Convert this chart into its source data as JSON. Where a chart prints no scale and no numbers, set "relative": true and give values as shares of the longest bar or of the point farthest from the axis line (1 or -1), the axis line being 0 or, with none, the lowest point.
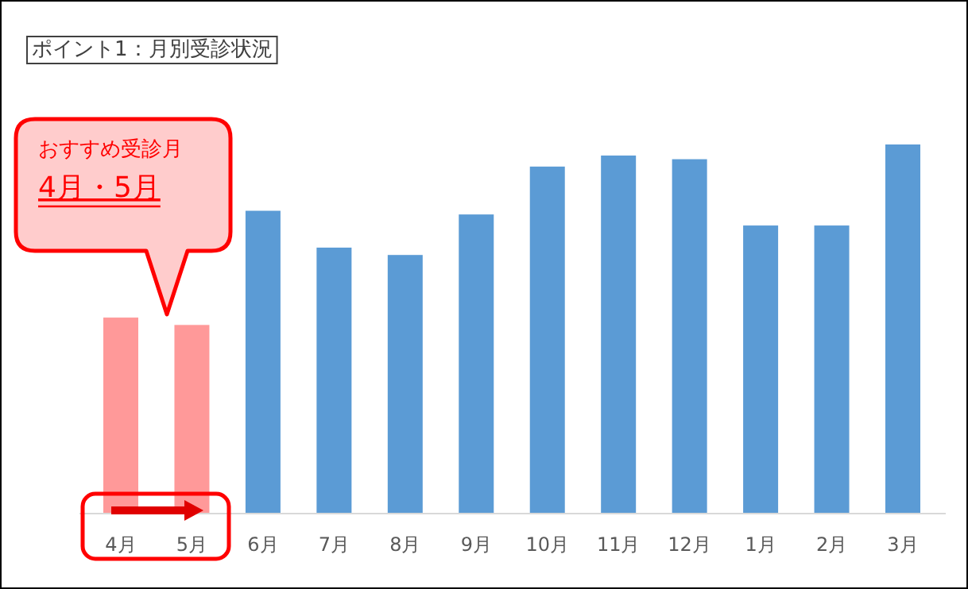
{
  "chart_data": {
    "type": "bar",
    "title": "ポイント1：月別受診状況",
    "categories": [
      "4月",
      "5月",
      "6月",
      "7月",
      "8月",
      "9月",
      "10月",
      "11月",
      "12月",
      "1月",
      "2月",
      "3月"
    ],
    "values": [
      0.53,
      0.51,
      0.82,
      0.72,
      0.7,
      0.81,
      0.94,
      0.97,
      0.96,
      0.78,
      0.78,
      1
    ],
    "colors": [
      "#ff9999",
      "#ff9999",
      "#5b9bd5",
      "#5b9bd5",
      "#5b9bd5",
      "#5b9bd5",
      "#5b9bd5",
      "#5b9bd5",
      "#5b9bd5",
      "#5b9bd5",
      "#5b9bd5",
      "#5b9bd5"
    ],
    "relative": true,
    "annotations": [
      "おすすめ受診月",
      "4月・5月"
    ]
  }
}
